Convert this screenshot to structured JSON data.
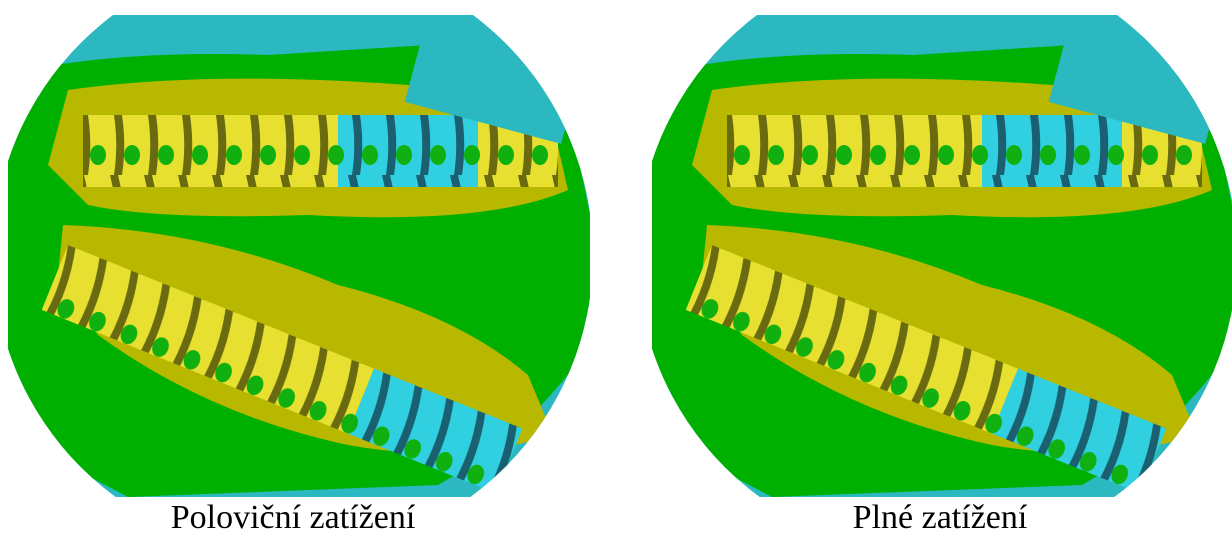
{
  "figure": {
    "panels": [
      {
        "caption": "Poloviční zatížení"
      },
      {
        "caption": "Plné zatížení"
      }
    ]
  }
}
